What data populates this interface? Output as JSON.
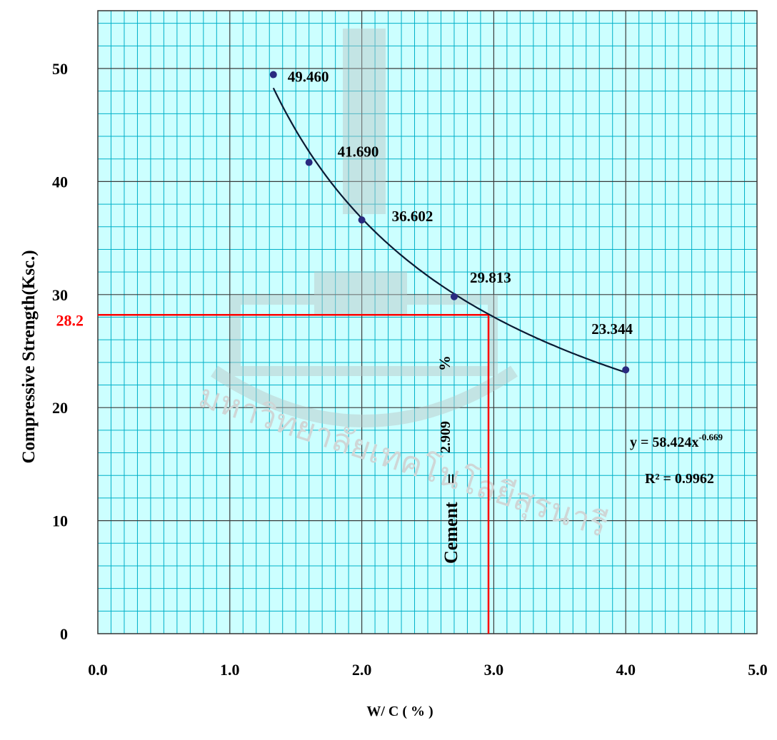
{
  "chart_data": {
    "type": "scatter",
    "xlabel": "W/ C ( % )",
    "ylabel": "Compressive Strength(Ksc.)",
    "xlim": [
      0,
      5
    ],
    "ylim": [
      0,
      55
    ],
    "x_ticks": [
      "0.0",
      "1.0",
      "2.0",
      "3.0",
      "4.0",
      "5.0"
    ],
    "y_ticks": [
      "0",
      "10",
      "20",
      "30",
      "40",
      "50"
    ],
    "grid": true,
    "series": [
      {
        "points": [
          {
            "x": 1.33,
            "y": 49.46,
            "label": "49.460"
          },
          {
            "x": 1.6,
            "y": 41.69,
            "label": "41.690"
          },
          {
            "x": 2.0,
            "y": 36.602,
            "label": "36.602"
          },
          {
            "x": 2.7,
            "y": 29.813,
            "label": "29.813"
          },
          {
            "x": 4.0,
            "y": 23.344,
            "label": "23.344"
          }
        ]
      }
    ],
    "trendline": {
      "type": "power",
      "a": 58.424,
      "b": -0.669,
      "equation_text": "y = 58.424x",
      "equation_exponent": "-0.669",
      "r2_text": "R² = 0.9962"
    },
    "reference": {
      "y": 28.2,
      "x": 2.96,
      "y_label": "28.2",
      "color": "#ff0000"
    },
    "annotation": {
      "prefix": "Cement",
      "equals": "=",
      "value": "2.909",
      "unit": "%"
    },
    "watermark_text": "มหาวิทยาลัยเทคโนโลยีสุรนารี"
  },
  "colors": {
    "plot_bg": "#ccffff",
    "minor_grid": "#00b0c8",
    "major_grid": "#3a3a3a",
    "trend_line": "#0a1a33",
    "marker": "#2a2a80",
    "reference": "#ff0000"
  }
}
